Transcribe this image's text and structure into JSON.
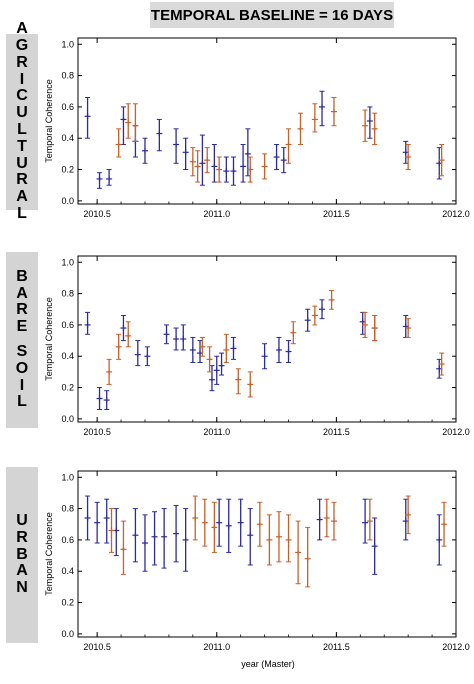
{
  "figure": {
    "title": "TEMPORAL BASELINE = 16 DAYS",
    "xlabel": "year (Master)"
  },
  "chart_data": [
    {
      "type": "scatter",
      "label": "AGRICULTURAL",
      "ylabel": "Temporal Coherence",
      "xlim": [
        2010.42,
        2012.0
      ],
      "ylim": [
        -0.02,
        1.04
      ],
      "xticks": [
        "2010.5",
        "2011.0",
        "2011.5",
        "2012.0"
      ],
      "yticks": [
        "0.0",
        "0.2",
        "0.4",
        "0.6",
        "0.8",
        "1.0"
      ],
      "series": [
        {
          "color": "#2b2b9e",
          "points": [
            [
              2010.46,
              0.54,
              0.4,
              0.66
            ],
            [
              2010.51,
              0.14,
              0.08,
              0.18
            ],
            [
              2010.55,
              0.14,
              0.1,
              0.2
            ],
            [
              2010.61,
              0.52,
              0.36,
              0.6
            ],
            [
              2010.66,
              0.38,
              0.28,
              0.48
            ],
            [
              2010.7,
              0.32,
              0.24,
              0.4
            ],
            [
              2010.76,
              0.43,
              0.32,
              0.52
            ],
            [
              2010.83,
              0.36,
              0.24,
              0.46
            ],
            [
              2010.87,
              0.31,
              0.2,
              0.4
            ],
            [
              2010.94,
              0.24,
              0.1,
              0.42
            ],
            [
              2010.99,
              0.22,
              0.12,
              0.36
            ],
            [
              2011.04,
              0.19,
              0.12,
              0.28
            ],
            [
              2011.07,
              0.19,
              0.1,
              0.28
            ],
            [
              2011.11,
              0.22,
              0.12,
              0.36
            ],
            [
              2011.13,
              0.3,
              0.16,
              0.46
            ],
            [
              2011.25,
              0.28,
              0.2,
              0.36
            ],
            [
              2011.28,
              0.26,
              0.18,
              0.34
            ],
            [
              2011.44,
              0.6,
              0.48,
              0.7
            ],
            [
              2011.64,
              0.51,
              0.4,
              0.6
            ],
            [
              2011.79,
              0.31,
              0.24,
              0.38
            ],
            [
              2011.93,
              0.24,
              0.14,
              0.34
            ]
          ]
        },
        {
          "color": "#c8602a",
          "points": [
            [
              2010.59,
              0.36,
              0.28,
              0.46
            ],
            [
              2010.63,
              0.5,
              0.4,
              0.62
            ],
            [
              2010.66,
              0.48,
              0.38,
              0.62
            ],
            [
              2010.9,
              0.25,
              0.16,
              0.34
            ],
            [
              2010.92,
              0.22,
              0.12,
              0.32
            ],
            [
              2010.96,
              0.26,
              0.18,
              0.34
            ],
            [
              2011.01,
              0.2,
              0.12,
              0.28
            ],
            [
              2011.14,
              0.2,
              0.12,
              0.28
            ],
            [
              2011.2,
              0.22,
              0.14,
              0.3
            ],
            [
              2011.3,
              0.36,
              0.24,
              0.46
            ],
            [
              2011.35,
              0.46,
              0.36,
              0.56
            ],
            [
              2011.41,
              0.52,
              0.44,
              0.62
            ],
            [
              2011.49,
              0.57,
              0.48,
              0.66
            ],
            [
              2011.62,
              0.48,
              0.38,
              0.58
            ],
            [
              2011.66,
              0.46,
              0.36,
              0.56
            ],
            [
              2011.8,
              0.28,
              0.2,
              0.36
            ],
            [
              2011.94,
              0.26,
              0.16,
              0.36
            ]
          ]
        }
      ]
    },
    {
      "type": "scatter",
      "label": "BARE SOIL",
      "ylabel": "Temporal Coherence",
      "xlim": [
        2010.42,
        2012.0
      ],
      "ylim": [
        -0.02,
        1.04
      ],
      "xticks": [
        "2010.5",
        "2011.0",
        "2011.5",
        "2012.0"
      ],
      "yticks": [
        "0.0",
        "0.2",
        "0.4",
        "0.6",
        "0.8",
        "1.0"
      ],
      "series": [
        {
          "color": "#2b2b9e",
          "points": [
            [
              2010.46,
              0.6,
              0.54,
              0.68
            ],
            [
              2010.51,
              0.13,
              0.06,
              0.2
            ],
            [
              2010.54,
              0.12,
              0.06,
              0.18
            ],
            [
              2010.61,
              0.58,
              0.5,
              0.66
            ],
            [
              2010.67,
              0.41,
              0.34,
              0.5
            ],
            [
              2010.71,
              0.4,
              0.34,
              0.46
            ],
            [
              2010.79,
              0.54,
              0.48,
              0.6
            ],
            [
              2010.83,
              0.51,
              0.44,
              0.58
            ],
            [
              2010.86,
              0.51,
              0.44,
              0.6
            ],
            [
              2010.9,
              0.44,
              0.36,
              0.52
            ],
            [
              2010.93,
              0.42,
              0.36,
              0.5
            ],
            [
              2010.98,
              0.25,
              0.18,
              0.34
            ],
            [
              2011.0,
              0.31,
              0.22,
              0.4
            ],
            [
              2011.02,
              0.34,
              0.28,
              0.42
            ],
            [
              2011.07,
              0.45,
              0.38,
              0.52
            ],
            [
              2011.2,
              0.4,
              0.32,
              0.48
            ],
            [
              2011.26,
              0.44,
              0.36,
              0.52
            ],
            [
              2011.3,
              0.43,
              0.36,
              0.5
            ],
            [
              2011.38,
              0.63,
              0.56,
              0.7
            ],
            [
              2011.44,
              0.7,
              0.64,
              0.76
            ],
            [
              2011.61,
              0.62,
              0.54,
              0.68
            ],
            [
              2011.66,
              0.58,
              0.5,
              0.66
            ],
            [
              2011.79,
              0.59,
              0.52,
              0.66
            ],
            [
              2011.93,
              0.32,
              0.26,
              0.38
            ]
          ]
        },
        {
          "color": "#c8602a",
          "points": [
            [
              2010.55,
              0.3,
              0.22,
              0.38
            ],
            [
              2010.59,
              0.46,
              0.38,
              0.54
            ],
            [
              2010.63,
              0.53,
              0.46,
              0.62
            ],
            [
              2010.94,
              0.46,
              0.4,
              0.52
            ],
            [
              2010.97,
              0.38,
              0.3,
              0.46
            ],
            [
              2011.04,
              0.44,
              0.36,
              0.54
            ],
            [
              2011.09,
              0.25,
              0.16,
              0.32
            ],
            [
              2011.14,
              0.22,
              0.14,
              0.3
            ],
            [
              2011.32,
              0.55,
              0.48,
              0.62
            ],
            [
              2011.41,
              0.66,
              0.6,
              0.72
            ],
            [
              2011.48,
              0.76,
              0.7,
              0.82
            ],
            [
              2011.62,
              0.6,
              0.52,
              0.68
            ],
            [
              2011.66,
              0.58,
              0.5,
              0.66
            ],
            [
              2011.8,
              0.58,
              0.52,
              0.64
            ],
            [
              2011.94,
              0.35,
              0.28,
              0.42
            ]
          ]
        }
      ]
    },
    {
      "type": "scatter",
      "label": "URBAN",
      "ylabel": "Temporal Coherence",
      "xlim": [
        2010.42,
        2012.0
      ],
      "ylim": [
        -0.02,
        1.04
      ],
      "xticks": [
        "2010.5",
        "2011.0",
        "2011.5",
        "2012.0"
      ],
      "yticks": [
        "0.0",
        "0.2",
        "0.4",
        "0.6",
        "0.8",
        "1.0"
      ],
      "series": [
        {
          "color": "#2b2b9e",
          "points": [
            [
              2010.46,
              0.74,
              0.6,
              0.88
            ],
            [
              2010.5,
              0.71,
              0.58,
              0.84
            ],
            [
              2010.54,
              0.74,
              0.58,
              0.86
            ],
            [
              2010.58,
              0.66,
              0.5,
              0.8
            ],
            [
              2010.66,
              0.63,
              0.46,
              0.8
            ],
            [
              2010.7,
              0.58,
              0.4,
              0.76
            ],
            [
              2010.74,
              0.62,
              0.44,
              0.78
            ],
            [
              2010.78,
              0.62,
              0.42,
              0.8
            ],
            [
              2010.83,
              0.64,
              0.46,
              0.82
            ],
            [
              2010.87,
              0.6,
              0.4,
              0.8
            ],
            [
              2011.01,
              0.71,
              0.56,
              0.86
            ],
            [
              2011.05,
              0.69,
              0.52,
              0.86
            ],
            [
              2011.1,
              0.71,
              0.56,
              0.86
            ],
            [
              2011.14,
              0.63,
              0.44,
              0.8
            ],
            [
              2011.43,
              0.73,
              0.6,
              0.86
            ],
            [
              2011.62,
              0.71,
              0.58,
              0.86
            ],
            [
              2011.66,
              0.56,
              0.38,
              0.74
            ],
            [
              2011.79,
              0.72,
              0.6,
              0.86
            ],
            [
              2011.93,
              0.6,
              0.44,
              0.76
            ]
          ]
        },
        {
          "color": "#c8602a",
          "points": [
            [
              2010.56,
              0.66,
              0.52,
              0.8
            ],
            [
              2010.61,
              0.54,
              0.38,
              0.72
            ],
            [
              2010.91,
              0.74,
              0.6,
              0.88
            ],
            [
              2010.95,
              0.71,
              0.56,
              0.86
            ],
            [
              2010.99,
              0.68,
              0.52,
              0.84
            ],
            [
              2011.18,
              0.7,
              0.56,
              0.84
            ],
            [
              2011.22,
              0.6,
              0.44,
              0.76
            ],
            [
              2011.26,
              0.62,
              0.46,
              0.78
            ],
            [
              2011.3,
              0.6,
              0.46,
              0.76
            ],
            [
              2011.34,
              0.52,
              0.32,
              0.72
            ],
            [
              2011.38,
              0.48,
              0.3,
              0.68
            ],
            [
              2011.46,
              0.74,
              0.62,
              0.86
            ],
            [
              2011.49,
              0.72,
              0.6,
              0.84
            ],
            [
              2011.64,
              0.72,
              0.6,
              0.86
            ],
            [
              2011.8,
              0.76,
              0.64,
              0.88
            ],
            [
              2011.95,
              0.7,
              0.56,
              0.84
            ]
          ]
        }
      ]
    }
  ]
}
